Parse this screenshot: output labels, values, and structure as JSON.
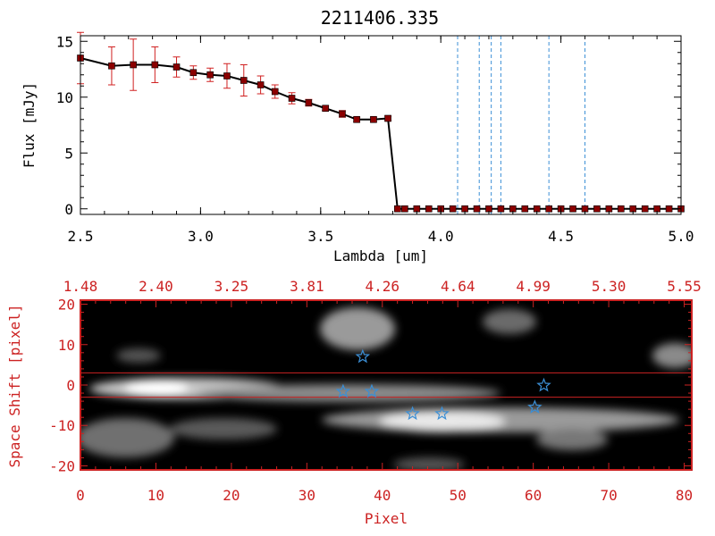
{
  "chart_data": [
    {
      "type": "line",
      "title": "2211406.335",
      "xlabel": "Lambda [um]",
      "ylabel": "Flux [mJy]",
      "xlim": [
        2.5,
        5.0
      ],
      "ylim": [
        -0.5,
        15.5
      ],
      "x_ticks": [
        "2.5",
        "3.0",
        "3.5",
        "4.0",
        "4.5",
        "5.0"
      ],
      "y_ticks": [
        "0",
        "5",
        "10",
        "15"
      ],
      "grid": false,
      "series": [
        {
          "x": [
            2.5,
            2.63,
            2.72,
            2.81,
            2.9,
            2.97,
            3.04,
            3.11,
            3.18,
            3.25,
            3.31,
            3.38,
            3.45,
            3.52,
            3.59,
            3.65,
            3.72,
            3.78,
            3.82,
            3.85,
            3.9,
            3.95,
            4.0,
            4.05,
            4.1,
            4.15,
            4.2,
            4.25,
            4.3,
            4.35,
            4.4,
            4.45,
            4.5,
            4.55,
            4.6,
            4.65,
            4.7,
            4.75,
            4.8,
            4.85,
            4.9,
            4.95,
            5.0
          ],
          "y": [
            13.5,
            12.8,
            12.9,
            12.9,
            12.7,
            12.2,
            12.0,
            11.9,
            11.5,
            11.1,
            10.5,
            9.9,
            9.5,
            9.0,
            8.5,
            8.0,
            8.0,
            8.1,
            0.0,
            0.0,
            0.0,
            0.0,
            0.0,
            0.0,
            0.0,
            0.0,
            0.0,
            0.0,
            0.0,
            0.0,
            0.0,
            0.0,
            0.0,
            0.0,
            0.0,
            0.0,
            0.0,
            0.0,
            0.0,
            0.0,
            0.0,
            0.0,
            0.0
          ],
          "yerr": [
            2.3,
            1.7,
            2.3,
            1.6,
            0.9,
            0.6,
            0.6,
            1.1,
            1.4,
            0.8,
            0.6,
            0.5,
            0.3,
            0.2,
            0.3,
            0.2,
            0.2,
            0.2,
            0,
            0,
            0,
            0,
            0,
            0,
            0,
            0,
            0,
            0,
            0,
            0,
            0,
            0,
            0,
            0,
            0,
            0,
            0,
            0,
            0,
            0,
            0,
            0,
            0
          ],
          "color": "#000000",
          "marker_color": "#8b0000",
          "error_color": "#d02020"
        }
      ],
      "vlines": [
        4.07,
        4.16,
        4.21,
        4.25,
        4.45,
        4.6
      ],
      "vline_color": "#3b8fd6"
    },
    {
      "type": "heatmap",
      "xlabel": "Pixel",
      "ylabel": "Space Shift [pixel]",
      "xlim": [
        0,
        81
      ],
      "ylim": [
        -21,
        21
      ],
      "x_ticks": [
        "0",
        "10",
        "20",
        "30",
        "40",
        "50",
        "60",
        "70",
        "80"
      ],
      "y_ticks": [
        "-20",
        "-10",
        "0",
        "10",
        "20"
      ],
      "top_ticks": [
        "1.48",
        "2.40",
        "3.25",
        "3.81",
        "4.26",
        "4.64",
        "4.99",
        "5.30",
        "5.55"
      ],
      "hlines": [
        3,
        -3
      ],
      "markers": [
        {
          "x": 37.4,
          "y": 7.0
        },
        {
          "x": 34.8,
          "y": -1.6
        },
        {
          "x": 38.6,
          "y": -1.6
        },
        {
          "x": 44.0,
          "y": -7.1
        },
        {
          "x": 47.9,
          "y": -7.1
        },
        {
          "x": 60.2,
          "y": -5.5
        },
        {
          "x": 61.4,
          "y": -0.1
        }
      ],
      "axis_color": "#cc2222",
      "marker_color": "#3b8fd6"
    }
  ]
}
